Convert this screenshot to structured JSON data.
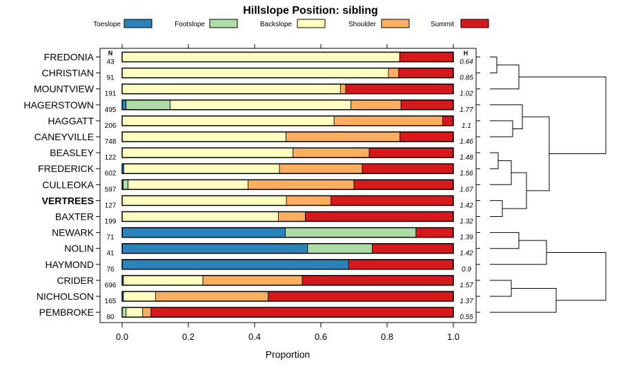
{
  "chart_data": {
    "type": "bar",
    "orientation": "horizontal-stacked",
    "title": "Hillslope Position: sibling",
    "xlabel": "Proportion",
    "xlim": [
      0,
      1
    ],
    "x_ticks": [
      0,
      0.2,
      0.4,
      0.6,
      0.8,
      1
    ],
    "x_tick_labels": [
      "0.0",
      "0.2",
      "0.4",
      "0.6",
      "0.8",
      "1.0"
    ],
    "n_header": "N",
    "h_header": "H",
    "legend": [
      {
        "name": "Toeslope",
        "color": "#2B83BA"
      },
      {
        "name": "Footslope",
        "color": "#ABDDA4"
      },
      {
        "name": "Backslope",
        "color": "#FFFFBF"
      },
      {
        "name": "Shoulder",
        "color": "#FDAE61"
      },
      {
        "name": "Summit",
        "color": "#D7191C"
      }
    ],
    "rows": [
      {
        "label": "FREDONIA",
        "bold": false,
        "n": "43",
        "h": "0.64",
        "values": [
          0,
          0,
          0.838,
          0,
          0.162
        ]
      },
      {
        "label": "CHRISTIAN",
        "bold": false,
        "n": "91",
        "h": "0.85",
        "values": [
          0,
          0,
          0.804,
          0.031,
          0.165
        ]
      },
      {
        "label": "MOUNTVIEW",
        "bold": false,
        "n": "191",
        "h": "1.02",
        "values": [
          0,
          0,
          0.659,
          0.016,
          0.325
        ]
      },
      {
        "label": "HAGERSTOWN",
        "bold": false,
        "n": "495",
        "h": "1.77",
        "values": [
          0.012,
          0.133,
          0.546,
          0.151,
          0.158
        ]
      },
      {
        "label": "HAGGATT",
        "bold": false,
        "n": "206",
        "h": "1.1",
        "values": [
          0,
          0,
          0.64,
          0.328,
          0.032
        ]
      },
      {
        "label": "CANEYVILLE",
        "bold": false,
        "n": "748",
        "h": "1.46",
        "values": [
          0,
          0,
          0.495,
          0.344,
          0.161
        ]
      },
      {
        "label": "BEASLEY",
        "bold": false,
        "n": "122",
        "h": "1.48",
        "values": [
          0,
          0,
          0.516,
          0.23,
          0.254
        ]
      },
      {
        "label": "FREDERICK",
        "bold": false,
        "n": "602",
        "h": "1.56",
        "values": [
          0.005,
          0,
          0.47,
          0.25,
          0.275
        ]
      },
      {
        "label": "CULLEOKA",
        "bold": false,
        "n": "597",
        "h": "1.67",
        "values": [
          0.003,
          0.015,
          0.362,
          0.32,
          0.3
        ]
      },
      {
        "label": "VERTREES",
        "bold": true,
        "n": "127",
        "h": "1.42",
        "values": [
          0,
          0,
          0.496,
          0.134,
          0.37
        ]
      },
      {
        "label": "BAXTER",
        "bold": false,
        "n": "199",
        "h": "1.32",
        "values": [
          0,
          0,
          0.472,
          0.081,
          0.447
        ]
      },
      {
        "label": "NEWARK",
        "bold": false,
        "n": "71",
        "h": "1.39",
        "values": [
          0.493,
          0.394,
          0,
          0,
          0.113
        ]
      },
      {
        "label": "NOLIN",
        "bold": false,
        "n": "41",
        "h": "1.42",
        "values": [
          0.56,
          0.195,
          0,
          0,
          0.245
        ]
      },
      {
        "label": "HAYMOND",
        "bold": false,
        "n": "76",
        "h": "0.9",
        "values": [
          0.684,
          0,
          0,
          0,
          0.316
        ]
      },
      {
        "label": "CRIDER",
        "bold": false,
        "n": "696",
        "h": "1.57",
        "values": [
          0.004,
          0,
          0.24,
          0.3,
          0.456
        ]
      },
      {
        "label": "NICHOLSON",
        "bold": false,
        "n": "165",
        "h": "1.37",
        "values": [
          0.004,
          0,
          0.097,
          0.34,
          0.559
        ]
      },
      {
        "label": "PEMBROKE",
        "bold": false,
        "n": "80",
        "h": "0.55",
        "values": [
          0,
          0.012,
          0.05,
          0.025,
          0.913
        ]
      }
    ]
  }
}
